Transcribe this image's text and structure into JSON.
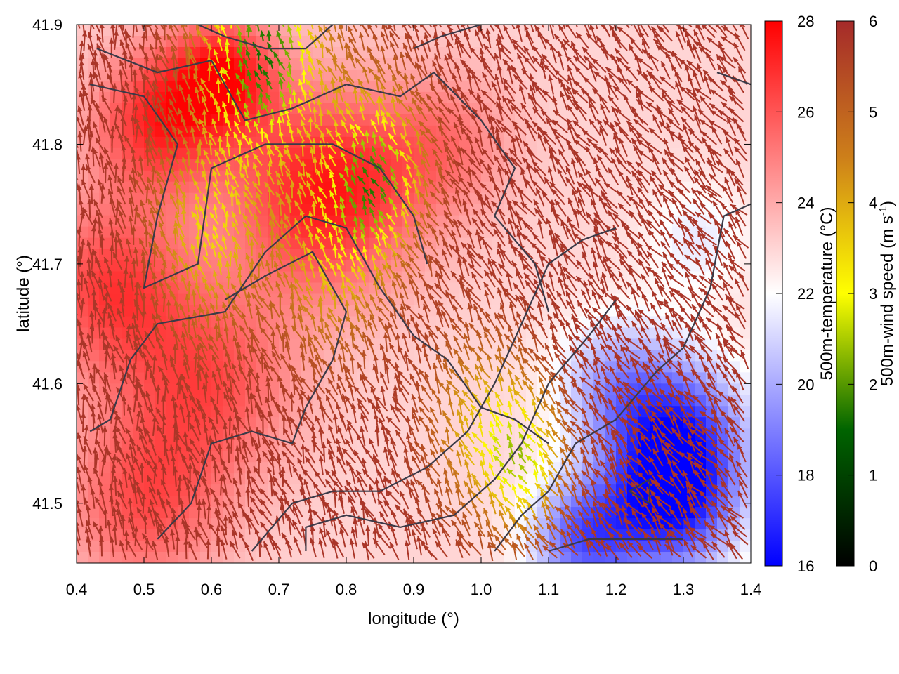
{
  "chart_data": {
    "type": "heatmap",
    "title": "",
    "xlabel": "longitude (°)",
    "ylabel": "latitude (°)",
    "xlim": [
      0.4,
      1.4
    ],
    "ylim": [
      41.45,
      41.9
    ],
    "xticks": [
      {
        "value": 0.4,
        "label": "0.4"
      },
      {
        "value": 0.5,
        "label": "0.5"
      },
      {
        "value": 0.6,
        "label": "0.6"
      },
      {
        "value": 0.7,
        "label": "0.7"
      },
      {
        "value": 0.8,
        "label": "0.8"
      },
      {
        "value": 0.9,
        "label": "0.9"
      },
      {
        "value": 1.0,
        "label": "1.0"
      },
      {
        "value": 1.1,
        "label": "1.1"
      },
      {
        "value": 1.2,
        "label": "1.2"
      },
      {
        "value": 1.3,
        "label": "1.3"
      },
      {
        "value": 1.4,
        "label": "1.4"
      }
    ],
    "yticks": [
      {
        "value": 41.5,
        "label": "41.5"
      },
      {
        "value": 41.6,
        "label": "41.6"
      },
      {
        "value": 41.7,
        "label": "41.7"
      },
      {
        "value": 41.8,
        "label": "41.8"
      },
      {
        "value": 41.9,
        "label": "41.9"
      }
    ],
    "temperature_colorbar": {
      "label": "500m-temperature (°C)",
      "range": [
        16,
        28
      ],
      "ticks": [
        {
          "value": 16,
          "label": "16"
        },
        {
          "value": 18,
          "label": "18"
        },
        {
          "value": 20,
          "label": "20"
        },
        {
          "value": 22,
          "label": "22"
        },
        {
          "value": 24,
          "label": "24"
        },
        {
          "value": 26,
          "label": "26"
        },
        {
          "value": 28,
          "label": "28"
        }
      ],
      "colors": [
        "#0000ff",
        "#ffffff",
        "#ff0000"
      ]
    },
    "wind_colorbar": {
      "label": "500m-wind speed (m s-1)",
      "range": [
        0,
        6
      ],
      "ticks": [
        {
          "value": 0,
          "label": "0"
        },
        {
          "value": 1,
          "label": "1"
        },
        {
          "value": 2,
          "label": "2"
        },
        {
          "value": 3,
          "label": "3"
        },
        {
          "value": 4,
          "label": "4"
        },
        {
          "value": 5,
          "label": "5"
        },
        {
          "value": 6,
          "label": "6"
        }
      ],
      "colors": [
        "#000000",
        "#006400",
        "#ffff00",
        "#cd7f1a",
        "#a52a2a"
      ]
    },
    "temperature_field": {
      "background": 23,
      "features": [
        {
          "lon": 0.77,
          "lat": 41.76,
          "temp": 27.5,
          "radius": 0.14
        },
        {
          "lon": 0.52,
          "lat": 41.82,
          "temp": 27.0,
          "radius": 0.1
        },
        {
          "lon": 0.62,
          "lat": 41.86,
          "temp": 27.0,
          "radius": 0.08
        },
        {
          "lon": 0.45,
          "lat": 41.68,
          "temp": 26.5,
          "radius": 0.12
        },
        {
          "lon": 0.6,
          "lat": 41.6,
          "temp": 26.0,
          "radius": 0.13
        },
        {
          "lon": 0.5,
          "lat": 41.5,
          "temp": 26.0,
          "radius": 0.12
        },
        {
          "lon": 0.95,
          "lat": 41.8,
          "temp": 25.0,
          "radius": 0.1
        },
        {
          "lon": 1.28,
          "lat": 41.5,
          "temp": 17.0,
          "radius": 0.1
        },
        {
          "lon": 1.3,
          "lat": 41.56,
          "temp": 18.5,
          "radius": 0.1
        },
        {
          "lon": 1.2,
          "lat": 41.6,
          "temp": 20.0,
          "radius": 0.09
        },
        {
          "lon": 1.15,
          "lat": 41.47,
          "temp": 18.5,
          "radius": 0.08
        },
        {
          "lon": 1.32,
          "lat": 41.72,
          "temp": 21.5,
          "radius": 0.08
        }
      ]
    },
    "wind_field": {
      "base_speed": 5.8,
      "features": [
        {
          "lon": 0.68,
          "lat": 41.87,
          "speed": 1.6,
          "radius": 0.09
        },
        {
          "lon": 0.85,
          "lat": 41.77,
          "speed": 2.2,
          "radius": 0.07
        },
        {
          "lon": 0.6,
          "lat": 41.72,
          "speed": 3.5,
          "radius": 0.08
        },
        {
          "lon": 0.78,
          "lat": 41.7,
          "speed": 3.8,
          "radius": 0.08
        },
        {
          "lon": 1.07,
          "lat": 41.53,
          "speed": 3.0,
          "radius": 0.06
        },
        {
          "lon": 1.0,
          "lat": 41.56,
          "speed": 4.0,
          "radius": 0.07
        }
      ]
    },
    "contours": [
      [
        [
          0.43,
          41.88
        ],
        [
          0.52,
          41.86
        ],
        [
          0.6,
          41.87
        ],
        [
          0.65,
          41.82
        ],
        [
          0.72,
          41.83
        ],
        [
          0.8,
          41.85
        ],
        [
          0.88,
          41.84
        ],
        [
          0.93,
          41.86
        ],
        [
          1.0,
          41.82
        ],
        [
          1.05,
          41.78
        ],
        [
          1.02,
          41.74
        ],
        [
          1.08,
          41.7
        ],
        [
          1.1,
          41.66
        ]
      ],
      [
        [
          0.42,
          41.85
        ],
        [
          0.5,
          41.84
        ],
        [
          0.55,
          41.8
        ],
        [
          0.52,
          41.74
        ],
        [
          0.5,
          41.68
        ],
        [
          0.58,
          41.7
        ],
        [
          0.6,
          41.78
        ],
        [
          0.68,
          41.8
        ],
        [
          0.78,
          41.8
        ],
        [
          0.85,
          41.78
        ],
        [
          0.9,
          41.74
        ],
        [
          0.92,
          41.7
        ]
      ],
      [
        [
          0.42,
          41.56
        ],
        [
          0.45,
          41.57
        ],
        [
          0.48,
          41.62
        ],
        [
          0.52,
          41.65
        ],
        [
          0.62,
          41.66
        ],
        [
          0.68,
          41.71
        ],
        [
          0.74,
          41.74
        ],
        [
          0.8,
          41.73
        ],
        [
          0.85,
          41.68
        ],
        [
          0.9,
          41.64
        ],
        [
          0.95,
          41.62
        ],
        [
          1.0,
          41.58
        ],
        [
          1.05,
          41.57
        ],
        [
          1.1,
          41.55
        ]
      ],
      [
        [
          0.52,
          41.47
        ],
        [
          0.57,
          41.5
        ],
        [
          0.6,
          41.55
        ],
        [
          0.66,
          41.56
        ],
        [
          0.72,
          41.55
        ],
        [
          0.74,
          41.58
        ],
        [
          0.78,
          41.62
        ],
        [
          0.8,
          41.66
        ],
        [
          0.75,
          41.71
        ],
        [
          0.68,
          41.69
        ],
        [
          0.62,
          41.67
        ]
      ],
      [
        [
          0.66,
          41.46
        ],
        [
          0.72,
          41.5
        ],
        [
          0.78,
          41.51
        ],
        [
          0.85,
          41.51
        ],
        [
          0.92,
          41.53
        ],
        [
          0.98,
          41.56
        ],
        [
          1.02,
          41.6
        ],
        [
          1.06,
          41.65
        ],
        [
          1.1,
          41.7
        ],
        [
          1.15,
          41.72
        ],
        [
          1.2,
          41.73
        ]
      ],
      [
        [
          0.74,
          41.46
        ],
        [
          0.74,
          41.48
        ],
        [
          0.8,
          41.49
        ],
        [
          0.88,
          41.48
        ],
        [
          0.96,
          41.49
        ],
        [
          1.02,
          41.52
        ],
        [
          1.06,
          41.55
        ],
        [
          1.1,
          41.6
        ],
        [
          1.16,
          41.64
        ],
        [
          1.2,
          41.67
        ]
      ],
      [
        [
          1.02,
          41.46
        ],
        [
          1.06,
          41.49
        ],
        [
          1.1,
          41.51
        ],
        [
          1.14,
          41.55
        ],
        [
          1.2,
          41.57
        ],
        [
          1.26,
          41.61
        ],
        [
          1.3,
          41.63
        ],
        [
          1.34,
          41.68
        ],
        [
          1.36,
          41.74
        ],
        [
          1.4,
          41.75
        ]
      ],
      [
        [
          1.1,
          41.46
        ],
        [
          1.16,
          41.47
        ],
        [
          1.24,
          41.47
        ],
        [
          1.3,
          41.47
        ]
      ],
      [
        [
          1.22,
          41.51
        ],
        [
          1.25,
          41.52
        ],
        [
          1.25,
          41.5
        ],
        [
          1.22,
          41.51
        ]
      ],
      [
        [
          1.35,
          41.86
        ],
        [
          1.4,
          41.85
        ]
      ],
      [
        [
          0.58,
          41.9
        ],
        [
          0.62,
          41.89
        ],
        [
          0.68,
          41.88
        ],
        [
          0.74,
          41.88
        ],
        [
          0.78,
          41.9
        ]
      ],
      [
        [
          0.9,
          41.88
        ],
        [
          0.94,
          41.89
        ],
        [
          1.0,
          41.9
        ]
      ]
    ]
  }
}
